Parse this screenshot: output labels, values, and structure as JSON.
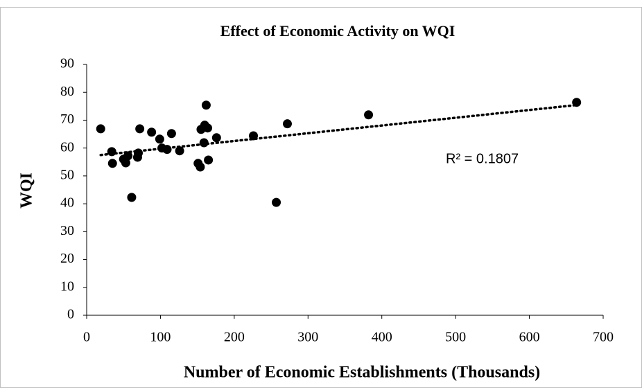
{
  "chart_data": {
    "type": "scatter",
    "title": "Effect of Economic Activity on WQI",
    "x_label": "Number of Economic Establishments (Thousands)",
    "y_label": "WQI",
    "annotation": "R² = 0.1807",
    "color": "#000000",
    "x": [
      19,
      34,
      35,
      50,
      53,
      56,
      61,
      69,
      70,
      72,
      88,
      99,
      102,
      109,
      115,
      126,
      151,
      154,
      155,
      159,
      160,
      162,
      164,
      165,
      176,
      226,
      257,
      272,
      382,
      664
    ],
    "values": [
      66.9,
      58.7,
      54.5,
      56,
      54.7,
      57.2,
      42.3,
      56.7,
      58.2,
      66.9,
      65.7,
      63.2,
      60,
      59.5,
      65.2,
      59,
      54.5,
      53.2,
      66.7,
      61.9,
      68.2,
      75.4,
      67.2,
      55.7,
      63.7,
      64.4,
      40.5,
      68.7,
      71.9,
      76.4
    ],
    "trendline": {
      "x": [
        19,
        663
      ],
      "values": [
        57.5,
        75.4
      ]
    },
    "xlim": [
      0,
      700
    ],
    "xticks": [
      0,
      100,
      200,
      300,
      400,
      500,
      600,
      700
    ],
    "ylim": [
      0,
      90
    ],
    "yticks": [
      0,
      10,
      20,
      30,
      40,
      50,
      60,
      70,
      80,
      90
    ]
  }
}
